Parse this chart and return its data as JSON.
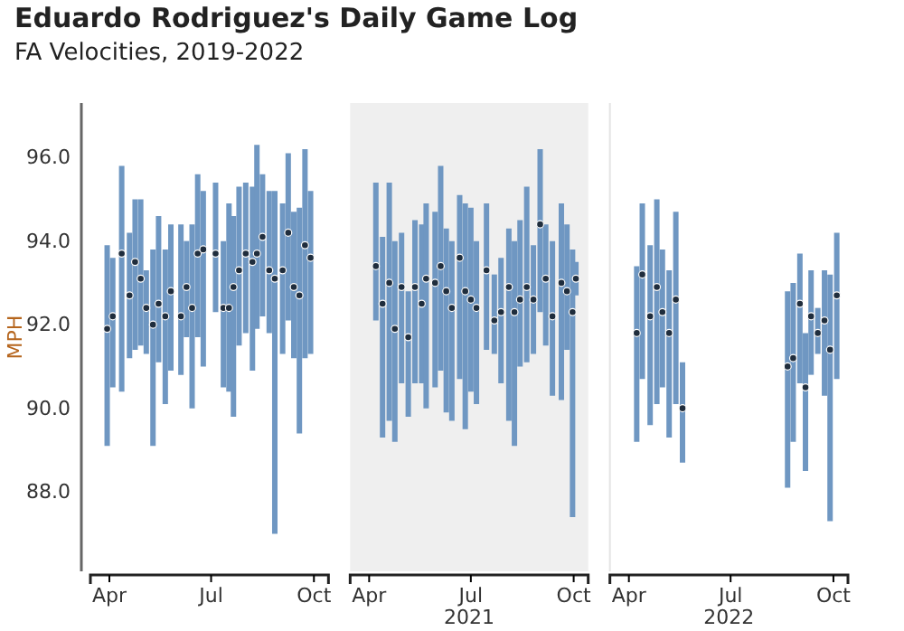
{
  "chart_data": [
    {
      "type": "scatter",
      "title": "Eduardo Rodriguez's Daily Game Log",
      "subtitle": "FA Velocities, 2019-2022",
      "ylabel": "MPH",
      "marker": "circle",
      "xlim": [
        "2019-03-15",
        "2019-10-14"
      ],
      "xticks": [
        {
          "value": "2019-04-01",
          "label": "Apr"
        },
        {
          "value": "2019-07-01",
          "label": "Jul"
        },
        {
          "value": "2019-10-01",
          "label": "Oct"
        }
      ],
      "ylim": [
        86.1,
        97.3
      ],
      "yticks": [
        {
          "value": 88,
          "label": "88.0"
        },
        {
          "value": 90,
          "label": "90.0"
        },
        {
          "value": 92,
          "label": "92.0"
        },
        {
          "value": 94,
          "label": "94.0"
        },
        {
          "value": 96,
          "label": "96.0"
        }
      ],
      "series": [
        {
          "color": "#1f2d3d",
          "x": [
            "2019-03-30",
            "2019-04-04",
            "2019-04-12",
            "2019-04-19",
            "2019-04-24",
            "2019-04-29",
            "2019-05-04",
            "2019-05-10",
            "2019-05-15",
            "2019-05-21",
            "2019-05-26",
            "2019-06-04",
            "2019-06-09",
            "2019-06-14",
            "2019-06-19",
            "2019-06-24",
            "2019-07-05",
            "2019-07-12",
            "2019-07-17",
            "2019-07-21",
            "2019-07-26",
            "2019-08-01",
            "2019-08-07",
            "2019-08-11",
            "2019-08-16",
            "2019-08-22",
            "2019-08-27",
            "2019-09-03",
            "2019-09-08",
            "2019-09-13",
            "2019-09-18",
            "2019-09-23",
            "2019-09-28"
          ],
          "values": [
            91.9,
            92.2,
            93.7,
            92.7,
            93.5,
            93.1,
            92.4,
            92.0,
            92.5,
            92.2,
            92.8,
            92.2,
            92.9,
            92.4,
            93.7,
            93.8,
            93.7,
            92.4,
            92.4,
            92.9,
            93.3,
            93.7,
            93.5,
            93.7,
            94.1,
            93.3,
            93.1,
            93.3,
            94.2,
            92.9,
            92.7,
            93.9,
            93.6
          ],
          "errors": [
            [
              89.1,
              93.9
            ],
            [
              90.5,
              93.6
            ],
            [
              90.4,
              95.8
            ],
            [
              91.2,
              94.2
            ],
            [
              91.4,
              95.0
            ],
            [
              91.5,
              95.0
            ],
            [
              91.3,
              93.3
            ],
            [
              89.1,
              93.8
            ],
            [
              91.1,
              94.6
            ],
            [
              90.1,
              93.8
            ],
            [
              90.9,
              94.4
            ],
            [
              90.8,
              94.4
            ],
            [
              91.7,
              94.0
            ],
            [
              90.0,
              94.4
            ],
            [
              91.7,
              95.6
            ],
            [
              91.0,
              95.2
            ],
            [
              92.3,
              95.4
            ],
            [
              90.5,
              94.0
            ],
            [
              90.4,
              94.9
            ],
            [
              89.8,
              94.6
            ],
            [
              91.5,
              95.3
            ],
            [
              91.8,
              95.4
            ],
            [
              90.9,
              95.3
            ],
            [
              91.9,
              96.3
            ],
            [
              92.2,
              95.6
            ],
            [
              91.8,
              95.2
            ],
            [
              87.0,
              95.2
            ],
            [
              91.3,
              94.9
            ],
            [
              92.1,
              96.1
            ],
            [
              91.2,
              94.7
            ],
            [
              89.4,
              94.8
            ],
            [
              91.2,
              96.2
            ],
            [
              91.3,
              95.2
            ]
          ]
        }
      ]
    },
    {
      "type": "scatter",
      "xlabel": "2021",
      "marker": "circle",
      "tick_labels": "x",
      "xlim": [
        "2021-03-15",
        "2021-10-14"
      ],
      "xticks": [
        {
          "value": "2021-04-01",
          "label": "Apr"
        },
        {
          "value": "2021-07-01",
          "label": "Jul"
        },
        {
          "value": "2021-10-01",
          "label": "Oct"
        }
      ],
      "ylim": [
        86.1,
        97.3
      ],
      "bands": [
        {
          "axis": "x",
          "from": "2021-03-15",
          "to": "2021-10-14",
          "color": "#efefef"
        }
      ],
      "series": [
        {
          "color": "#1f2d3d",
          "x": [
            "2021-04-07",
            "2021-04-13",
            "2021-04-19",
            "2021-04-24",
            "2021-04-30",
            "2021-05-06",
            "2021-05-12",
            "2021-05-18",
            "2021-05-22",
            "2021-05-30",
            "2021-06-04",
            "2021-06-09",
            "2021-06-14",
            "2021-06-21",
            "2021-06-26",
            "2021-07-01",
            "2021-07-06",
            "2021-07-15",
            "2021-07-22",
            "2021-07-28",
            "2021-08-04",
            "2021-08-09",
            "2021-08-14",
            "2021-08-20",
            "2021-08-26",
            "2021-09-01",
            "2021-09-06",
            "2021-09-12",
            "2021-09-20",
            "2021-09-25",
            "2021-09-30",
            "2021-10-03"
          ],
          "values": [
            93.4,
            92.5,
            93.0,
            91.9,
            92.9,
            91.7,
            92.9,
            92.5,
            93.1,
            93.0,
            93.4,
            92.8,
            92.4,
            93.6,
            92.8,
            92.6,
            92.4,
            93.3,
            92.1,
            92.3,
            92.9,
            92.3,
            92.6,
            92.9,
            92.6,
            94.4,
            93.1,
            92.2,
            93.0,
            92.8,
            92.3,
            93.1
          ],
          "errors": [
            [
              92.1,
              95.4
            ],
            [
              89.3,
              94.1
            ],
            [
              89.7,
              95.4
            ],
            [
              89.2,
              94.0
            ],
            [
              90.6,
              94.2
            ],
            [
              89.8,
              92.8
            ],
            [
              90.6,
              94.5
            ],
            [
              90.6,
              94.4
            ],
            [
              90.0,
              94.9
            ],
            [
              90.5,
              94.7
            ],
            [
              90.9,
              95.8
            ],
            [
              89.9,
              94.3
            ],
            [
              89.7,
              94.0
            ],
            [
              90.7,
              95.1
            ],
            [
              89.5,
              94.9
            ],
            [
              90.4,
              94.8
            ],
            [
              90.1,
              94.0
            ],
            [
              91.4,
              94.9
            ],
            [
              91.3,
              93.2
            ],
            [
              90.6,
              93.6
            ],
            [
              89.7,
              94.3
            ],
            [
              89.1,
              94.0
            ],
            [
              91.0,
              94.5
            ],
            [
              91.1,
              95.3
            ],
            [
              91.3,
              93.9
            ],
            [
              92.3,
              96.2
            ],
            [
              91.5,
              94.4
            ],
            [
              90.3,
              94.0
            ],
            [
              90.2,
              94.9
            ],
            [
              91.4,
              94.4
            ],
            [
              87.4,
              93.8
            ],
            [
              92.7,
              93.5
            ]
          ]
        }
      ]
    },
    {
      "type": "scatter",
      "xlabel": "2022",
      "marker": "circle",
      "tick_labels": "x",
      "xlim": [
        "2022-03-15",
        "2022-10-14"
      ],
      "xticks": [
        {
          "value": "2022-04-01",
          "label": "Apr"
        },
        {
          "value": "2022-07-01",
          "label": "Jul"
        },
        {
          "value": "2022-10-01",
          "label": "Oct"
        }
      ],
      "ylim": [
        86.1,
        97.3
      ],
      "series": [
        {
          "color": "#1f2d3d",
          "x": [
            "2022-04-08",
            "2022-04-13",
            "2022-04-20",
            "2022-04-26",
            "2022-05-01",
            "2022-05-07",
            "2022-05-13",
            "2022-05-19",
            "2022-08-21",
            "2022-08-26",
            "2022-09-01",
            "2022-09-06",
            "2022-09-11",
            "2022-09-17",
            "2022-09-23",
            "2022-09-28",
            "2022-10-04"
          ],
          "values": [
            91.8,
            93.2,
            92.2,
            92.9,
            92.3,
            91.8,
            92.6,
            90.0,
            91.0,
            91.2,
            92.5,
            90.5,
            92.2,
            91.8,
            92.1,
            91.4,
            92.7
          ],
          "errors": [
            [
              89.2,
              93.4
            ],
            [
              90.7,
              94.9
            ],
            [
              89.6,
              93.9
            ],
            [
              90.1,
              95.0
            ],
            [
              90.5,
              93.8
            ],
            [
              89.3,
              93.3
            ],
            [
              90.1,
              94.7
            ],
            [
              88.7,
              91.1
            ],
            [
              88.1,
              92.8
            ],
            [
              89.2,
              93.0
            ],
            [
              90.6,
              93.7
            ],
            [
              88.5,
              91.8
            ],
            [
              90.8,
              93.3
            ],
            [
              91.3,
              92.4
            ],
            [
              90.3,
              93.3
            ],
            [
              87.3,
              93.2
            ],
            [
              90.7,
              94.2
            ]
          ]
        }
      ]
    }
  ]
}
